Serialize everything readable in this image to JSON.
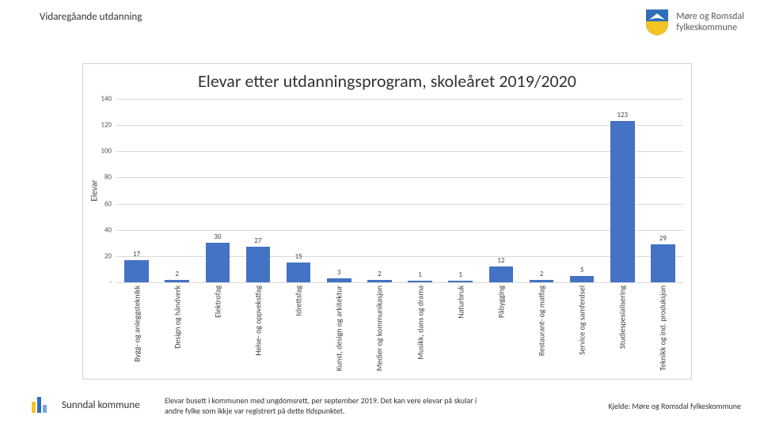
{
  "header": {
    "breadcrumb": "Vidaregåande utdanning"
  },
  "logo": {
    "line1": "Møre og Romsdal",
    "line2": "fylkeskommune",
    "shield_top_color": "#2e6fb7",
    "shield_bottom_color": "#f2c324",
    "boat_color": "#ffffff"
  },
  "chart": {
    "type": "bar",
    "title": "Elevar etter utdanningsprogram, skoleåret 2019/2020",
    "y_label": "Elevar",
    "ylim": [
      0,
      140
    ],
    "ytick_step": 20,
    "yticks": [
      0,
      20,
      40,
      60,
      80,
      100,
      120,
      140
    ],
    "ytick_labels": [
      "-",
      "20",
      "40",
      "60",
      "80",
      "100",
      "120",
      "140"
    ],
    "bar_color": "#4472c4",
    "grid_color": "#d9d9d9",
    "background_color": "#ffffff",
    "value_fontsize": 9,
    "tick_fontsize": 9,
    "label_fontsize": 10,
    "title_fontsize": 22,
    "bar_width": 0.6,
    "categories": [
      "Bygg- og anleggsteknikk",
      "Design og håndverk",
      "Elektrofag",
      "Helse- og oppvekstfag",
      "Idrettsfag",
      "Kunst, design og arkitektur",
      "Medier og kommunikasjon",
      "Musikk, dans og drama",
      "Naturbruk",
      "Påbygging",
      "Restaurant- og matfag",
      "Service og samferdsel",
      "Studiespesialisering",
      "Teknikk og ind. produksjon"
    ],
    "values": [
      17,
      2,
      30,
      27,
      15,
      3,
      2,
      1,
      1,
      12,
      2,
      5,
      123,
      29
    ]
  },
  "footer": {
    "kommune": "Sunndal kommune",
    "note": "Elevar busett i kommunen med ungdomsrett, per september 2019. Det kan vere elevar på skular i andre fylke som ikkje var registrert på dette tidspunktet.",
    "source": "Kjelde: Møre og Romsdal fylkeskommune",
    "icon_colors": [
      "#f2c324",
      "#2e6fb7",
      "#7aa5d8"
    ],
    "icon_heights": [
      14,
      20,
      10
    ]
  }
}
